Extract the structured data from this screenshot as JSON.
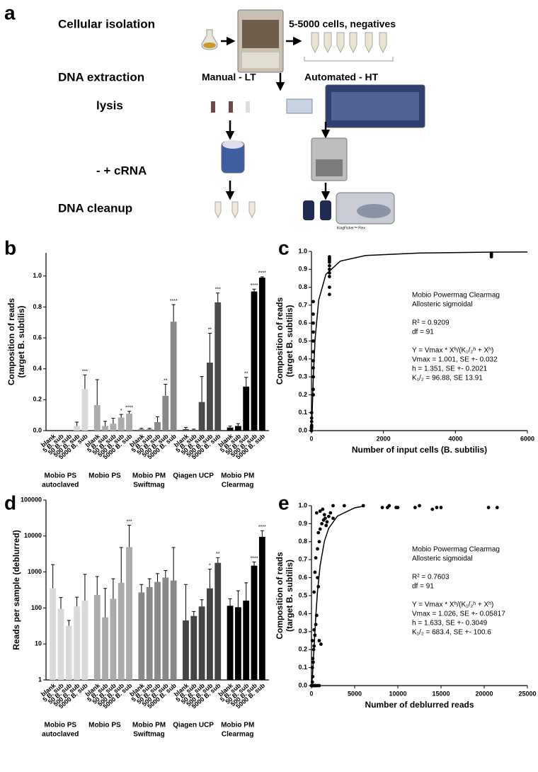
{
  "diagram": {
    "label": "a",
    "steps": [
      "Cellular isolation",
      "DNA extraction",
      "lysis",
      "- + cRNA",
      "DNA cleanup"
    ],
    "cells_note": "5-5000 cells, negatives",
    "manual": "Manual - LT",
    "automated": "Automated - HT",
    "instrument_label": "KingFisher™ Flex"
  },
  "chart_data": [
    {
      "type": "bar",
      "panel": "b",
      "ylabel": [
        "Composition of reads",
        "(target B. subtilis)"
      ],
      "ylim": [
        0,
        1.15
      ],
      "yticks": [
        {
          "value": 0,
          "label": "0.0"
        },
        {
          "value": 0.2,
          "label": "0.2"
        },
        {
          "value": 0.4,
          "label": "0.4"
        },
        {
          "value": 0.6,
          "label": "0.6"
        },
        {
          "value": 0.8,
          "label": "0.8"
        },
        {
          "value": 1,
          "label": "1.0"
        }
      ],
      "log_scale": false,
      "groups": [
        {
          "name": [
            "Mobio PS",
            "autoclaved"
          ],
          "color": "#d9d9d9",
          "categories": [
            "blank",
            "5 B. sub",
            "50 B. sub",
            "500 B. sub",
            "5000 B. sub"
          ],
          "values": [
            0,
            0,
            0,
            0.03,
            0.27
          ],
          "errors": [
            0,
            0,
            0,
            0.025,
            0.09
          ],
          "significance": [
            null,
            null,
            null,
            null,
            "***"
          ]
        },
        {
          "name": [
            "Mobio PS"
          ],
          "color": "#ababab",
          "categories": [
            "blank",
            "5 B. sub",
            "50 B. sub",
            "500 B. sub",
            "5000 B. sub"
          ],
          "values": [
            0.165,
            0.03,
            0.045,
            0.085,
            0.11
          ],
          "errors": [
            0.165,
            0.03,
            0.035,
            0.02,
            0.015
          ],
          "significance": [
            null,
            null,
            null,
            "*",
            "****"
          ]
        },
        {
          "name": [
            "Mobio PM",
            "Swiftmag"
          ],
          "color": "#898989",
          "categories": [
            "blank",
            "5 B. sub",
            "50 B. sub",
            "500 B. sub",
            "5000 B. sub"
          ],
          "values": [
            0.01,
            0.01,
            0.055,
            0.225,
            0.705
          ],
          "errors": [
            0.005,
            0.005,
            0.035,
            0.075,
            0.11
          ],
          "significance": [
            null,
            null,
            null,
            "**",
            "****"
          ]
        },
        {
          "name": [
            "Qiagen UCP"
          ],
          "color": "#4a4a4a",
          "categories": [
            "blank",
            "5 B. sub",
            "50 B. sub",
            "500 B. sub",
            "5000 B. sub"
          ],
          "values": [
            0.01,
            0.005,
            0.185,
            0.44,
            0.83
          ],
          "errors": [
            0.01,
            0.005,
            0.165,
            0.19,
            0.06
          ],
          "significance": [
            null,
            null,
            null,
            "**",
            "***"
          ]
        },
        {
          "name": [
            "Mobio PM",
            "Clearmag"
          ],
          "color": "#000000",
          "categories": [
            "blank",
            "5 B. sub",
            "50 B. sub",
            "500 B. sub",
            "5000 B. sub"
          ],
          "values": [
            0.02,
            0.03,
            0.285,
            0.9,
            0.99
          ],
          "errors": [
            0.01,
            0.015,
            0.06,
            0.015,
            0.005
          ],
          "significance": [
            null,
            null,
            "**",
            "****",
            "****"
          ]
        }
      ]
    },
    {
      "type": "scatter",
      "panel": "c",
      "xlabel": "Number of input cells (B. subtilis)",
      "ylabel": [
        "Composition of reads",
        "(target B. subtilis)"
      ],
      "xlim": [
        0,
        6000
      ],
      "xticks": [
        0,
        2000,
        4000,
        6000
      ],
      "ylim": [
        0,
        1
      ],
      "yticks": [
        {
          "value": 0,
          "label": "0.0"
        },
        {
          "value": 0.1,
          "label": "0.1"
        },
        {
          "value": 0.2,
          "label": "0.2"
        },
        {
          "value": 0.3,
          "label": "0.3"
        },
        {
          "value": 0.4,
          "label": "0.4"
        },
        {
          "value": 0.5,
          "label": "0.5"
        },
        {
          "value": 0.6,
          "label": "0.6"
        },
        {
          "value": 0.7,
          "label": "0.7"
        },
        {
          "value": 0.8,
          "label": "0.8"
        },
        {
          "value": 0.9,
          "label": "0.9"
        },
        {
          "value": 1,
          "label": "1.0"
        }
      ],
      "x": [
        0,
        0,
        0,
        5,
        5,
        5,
        5,
        5,
        50,
        50,
        50,
        50,
        50,
        50,
        50,
        50,
        50,
        50,
        50,
        500,
        500,
        500,
        500,
        500,
        500,
        500,
        500,
        500,
        500,
        5000,
        5000,
        5000,
        5000
      ],
      "values": [
        0,
        0.01,
        0.02,
        0.03,
        0.05,
        0.07,
        0.1,
        0.02,
        0.2,
        0.23,
        0.3,
        0.35,
        0.39,
        0.44,
        0.5,
        0.55,
        0.6,
        0.65,
        0.72,
        0.76,
        0.8,
        0.86,
        0.88,
        0.9,
        0.92,
        0.94,
        0.95,
        0.96,
        0.97,
        0.97,
        0.98,
        0.985,
        0.99
      ],
      "fit": {
        "x": [
          0,
          10,
          25,
          50,
          100,
          200,
          400,
          800,
          1500,
          3000,
          5000,
          6000
        ],
        "values": [
          0,
          0.045,
          0.138,
          0.29,
          0.511,
          0.728,
          0.872,
          0.946,
          0.977,
          0.991,
          0.996,
          0.997
        ]
      },
      "annotation": [
        [
          "Mobio Powermag Clearmag",
          "Allosteric sigmoidal"
        ],
        [
          "R² = 0.9209",
          "df = 91"
        ],
        [
          "Y = Vmax * Xʰ/(K₁/₂ʰ + Xʰ)",
          "Vmax = 1.001, SE +- 0.032",
          "h = 1.351, SE +- 0.2021",
          "K₁/₂ = 96.88, SE 13.91"
        ]
      ]
    },
    {
      "type": "bar",
      "panel": "d",
      "ylabel": [
        "Reads per sample (deblurred)"
      ],
      "ylim": [
        1,
        100000
      ],
      "yticks": [
        1,
        10,
        100,
        1000,
        10000,
        100000
      ],
      "log_scale": true,
      "groups": [
        {
          "name": [
            "Mobio PS",
            "autoclaved"
          ],
          "color": "#d9d9d9",
          "categories": [
            "blank",
            "5 B. sub",
            "50 B. sub",
            "500 B. sub",
            "5000 B. sub"
          ],
          "values": [
            350,
            95,
            32,
            110,
            160
          ],
          "errors": [
            1250,
            100,
            13,
            90,
            700
          ],
          "significance": [
            null,
            null,
            null,
            null,
            null
          ]
        },
        {
          "name": [
            "Mobio PS"
          ],
          "color": "#ababab",
          "categories": [
            "blank",
            "5 B. sub",
            "50 B. sub",
            "500 B. sub",
            "5000 B. sub"
          ],
          "values": [
            230,
            55,
            180,
            500,
            4900
          ],
          "errors": [
            520,
            295,
            470,
            4300,
            15100
          ],
          "significance": [
            null,
            null,
            null,
            null,
            "***"
          ]
        },
        {
          "name": [
            "Mobio PM",
            "Swiftmag"
          ],
          "color": "#898989",
          "categories": [
            "blank",
            "5 B. sub",
            "50 B. sub",
            "500 B. sub",
            "5000 B. sub"
          ],
          "values": [
            270,
            380,
            530,
            700,
            580
          ],
          "errors": [
            180,
            270,
            370,
            400,
            4220
          ],
          "significance": [
            null,
            null,
            null,
            null,
            null
          ]
        },
        {
          "name": [
            "Qiagen UCP"
          ],
          "color": "#444444",
          "categories": [
            "blank",
            "5 B. sub",
            "50 B. sub",
            "500 B. sub",
            "5000 B. sub"
          ],
          "values": [
            45,
            60,
            110,
            350,
            1800
          ],
          "errors": [
            405,
            20,
            60,
            850,
            700
          ],
          "significance": [
            null,
            null,
            null,
            "*",
            "**"
          ]
        },
        {
          "name": [
            "Mobio PM",
            "Clearmag"
          ],
          "color": "#000000",
          "categories": [
            "blank",
            "5 B. sub",
            "50 B. sub",
            "500 B. sub",
            "5000 B. sub"
          ],
          "values": [
            115,
            105,
            160,
            1500,
            9500
          ],
          "errors": [
            65,
            195,
            340,
            400,
            4500
          ],
          "significance": [
            null,
            null,
            null,
            "****",
            "****"
          ]
        }
      ]
    },
    {
      "type": "scatter",
      "panel": "e",
      "xlabel": "Number of deblurred reads",
      "ylabel": [
        "Composition of reads",
        "(target B. subtilis)"
      ],
      "xlim": [
        0,
        25000
      ],
      "xticks": [
        0,
        5000,
        10000,
        15000,
        20000,
        25000
      ],
      "ylim": [
        0,
        1
      ],
      "yticks": [
        {
          "value": 0,
          "label": "0.0"
        },
        {
          "value": 0.1,
          "label": "0.1"
        },
        {
          "value": 0.2,
          "label": "0.2"
        },
        {
          "value": 0.3,
          "label": "0.3"
        },
        {
          "value": 0.4,
          "label": "0.4"
        },
        {
          "value": 0.5,
          "label": "0.5"
        },
        {
          "value": 0.6,
          "label": "0.6"
        },
        {
          "value": 0.7,
          "label": "0.7"
        },
        {
          "value": 0.8,
          "label": "0.8"
        },
        {
          "value": 0.9,
          "label": "0.9"
        },
        {
          "value": 1,
          "label": "1.0"
        }
      ],
      "x": [
        0,
        50,
        100,
        150,
        200,
        300,
        400,
        500,
        700,
        900,
        100,
        150,
        100,
        200,
        150,
        250,
        300,
        100,
        400,
        300,
        500,
        600,
        900,
        1100,
        300,
        400,
        500,
        700,
        900,
        800,
        1000,
        1200,
        1400,
        1600,
        1800,
        2000,
        1700,
        1500,
        2200,
        2500,
        1000,
        1300,
        600,
        2500,
        3800,
        6000,
        8200,
        8800,
        9000,
        10000,
        9800,
        12000,
        12500,
        14000,
        14500,
        15000,
        20500,
        21500,
        700,
        800
      ],
      "values": [
        0,
        0,
        0,
        0,
        0,
        0,
        0,
        0,
        0,
        0,
        0.02,
        0.05,
        0.1,
        0.13,
        0.15,
        0.2,
        0.22,
        0.25,
        0.28,
        0.31,
        0.34,
        0.39,
        0.25,
        0.23,
        0.52,
        0.63,
        0.71,
        0.76,
        0.8,
        0.85,
        0.87,
        0.9,
        0.92,
        0.93,
        0.91,
        0.94,
        0.89,
        0.95,
        0.96,
        0.93,
        0.97,
        0.98,
        0.96,
        1,
        1,
        1,
        0.99,
        0.99,
        1,
        0.99,
        0.99,
        0.99,
        1,
        0.98,
        0.99,
        0.99,
        0.99,
        0.99,
        0.6,
        0.55
      ],
      "fit": {
        "x": [
          0,
          100,
          200,
          300,
          500,
          700,
          1000,
          1500,
          2000,
          3000,
          5000,
          6000
        ],
        "values": [
          0,
          0.043,
          0.122,
          0.212,
          0.385,
          0.523,
          0.667,
          0.803,
          0.875,
          0.942,
          0.988,
          0.997
        ]
      },
      "annotation": [
        [
          "Mobio Powermag Clearmag",
          "Allosteric sigmoidal"
        ],
        [
          "R² = 0.7603",
          "df = 91"
        ],
        [
          "Y = Vmax * Xʰ/(K₁/₂ʰ + Xʰ)",
          "Vmax = 1.026, SE +- 0.05817",
          "h = 1.633, SE +- 0.3049",
          "K₁/₂ = 683.4, SE +- 100.6"
        ]
      ]
    }
  ]
}
